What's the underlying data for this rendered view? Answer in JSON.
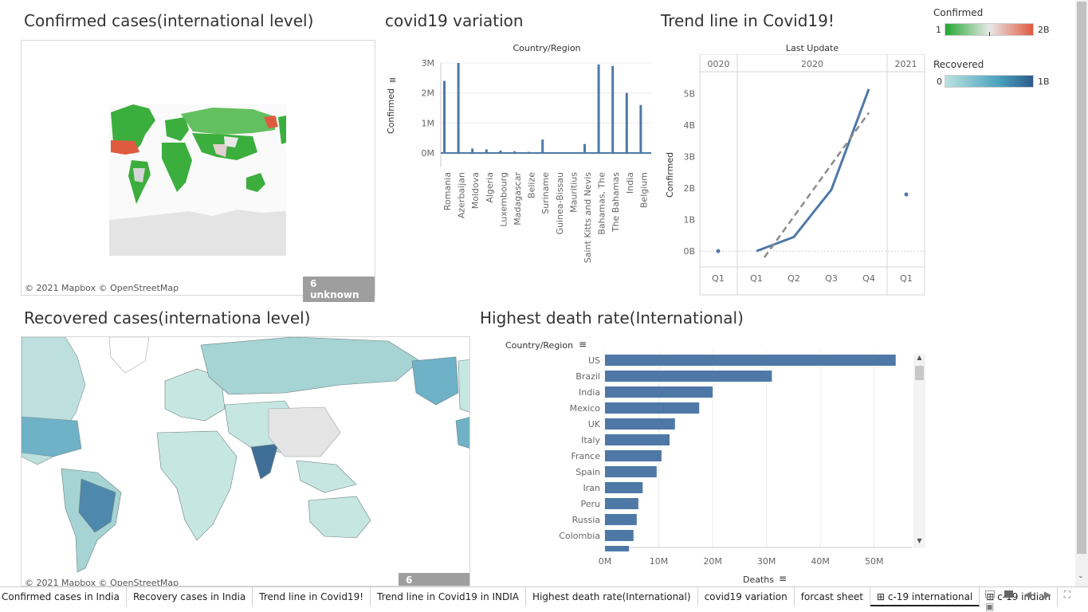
{
  "titles": {
    "confirmed_map": "Confirmed cases(international level)",
    "variation": "covid19 variation",
    "trend": "Trend line in Covid19!",
    "recovered_map": "Recovered cases(internationa level)",
    "death_rate": "Highest death rate(International)"
  },
  "map": {
    "copyright": "© 2021 Mapbox © OpenStreetMap",
    "unknown_badge": "6 unknown"
  },
  "legends": {
    "confirmed": {
      "title": "Confirmed",
      "min": "1",
      "max": "2B",
      "colors": [
        "#21a832",
        "#e05a3f"
      ]
    },
    "recovered": {
      "title": "Recovered",
      "min": "0",
      "max": "1B",
      "colors": [
        "#b9e2df",
        "#2b5c8a"
      ]
    }
  },
  "colors": {
    "bar": "#4e79a7",
    "line": "#4e79a7",
    "trend_dash": "#8c8c8c"
  },
  "chart_data": [
    {
      "type": "bar",
      "title": "covid19 variation",
      "xlabel": "Country/Region",
      "ylabel": "Confirmed",
      "ylim": [
        0,
        3000000
      ],
      "yticks": [
        "3M",
        "2M",
        "1M",
        "0M"
      ],
      "categories": [
        "Romania",
        "Azerbaijan",
        "Moldova",
        "Algeria",
        "Luxembourg",
        "Madagascar",
        "Belize",
        "Suriname",
        "Guinea-Bissau",
        "Mauritius",
        "Saint Kitts and Nevis",
        "Bahamas, The",
        "The Bahamas",
        "India",
        "Belgium"
      ],
      "values": [
        2400000,
        3000000,
        150000,
        120000,
        80000,
        60000,
        40000,
        450000,
        20000,
        15000,
        300000,
        2950000,
        2900000,
        2000000,
        1600000
      ]
    },
    {
      "type": "line",
      "title": "Trend line in Covid19!",
      "xlabel": "Last Update",
      "ylabel": "Confirmed",
      "year_headers": [
        "0020",
        "2020",
        "2021"
      ],
      "x": [
        "Q1",
        "Q1",
        "Q2",
        "Q3",
        "Q4",
        "Q1"
      ],
      "y_ticks": [
        "5B",
        "4B",
        "3B",
        "2B",
        "1B",
        "0B"
      ],
      "ylim": [
        -0.2,
        5.5
      ],
      "series": [
        {
          "values": [
            0.0,
            0.0,
            0.45,
            1.95,
            5.15,
            1.8
          ]
        }
      ],
      "trend_line": [
        [
          -0.2,
          4.4
        ]
      ]
    },
    {
      "type": "bar",
      "title": "Highest death rate(International)",
      "xlabel": "Deaths",
      "ylabel": "Country/Region",
      "xticks": [
        "0M",
        "10M",
        "20M",
        "30M",
        "40M",
        "50M"
      ],
      "xlim": [
        0,
        57000000
      ],
      "categories": [
        "US",
        "Brazil",
        "India",
        "Mexico",
        "UK",
        "Italy",
        "France",
        "Spain",
        "Iran",
        "Peru",
        "Russia",
        "Colombia"
      ],
      "values": [
        54000000,
        31000000,
        20000000,
        17500000,
        13000000,
        12000000,
        10500000,
        9600000,
        7000000,
        6200000,
        5900000,
        5300000
      ]
    }
  ],
  "tabs": [
    "Confirmed cases in India",
    "Recovery cases in India",
    "Trend line in Covid19!",
    "Trend line in Covid19 in INDIA",
    "Highest death rate(International)",
    "covid19 variation",
    "forcast sheet",
    "c-19 international",
    "c-19 indian"
  ],
  "active_tab": "c-19 international"
}
